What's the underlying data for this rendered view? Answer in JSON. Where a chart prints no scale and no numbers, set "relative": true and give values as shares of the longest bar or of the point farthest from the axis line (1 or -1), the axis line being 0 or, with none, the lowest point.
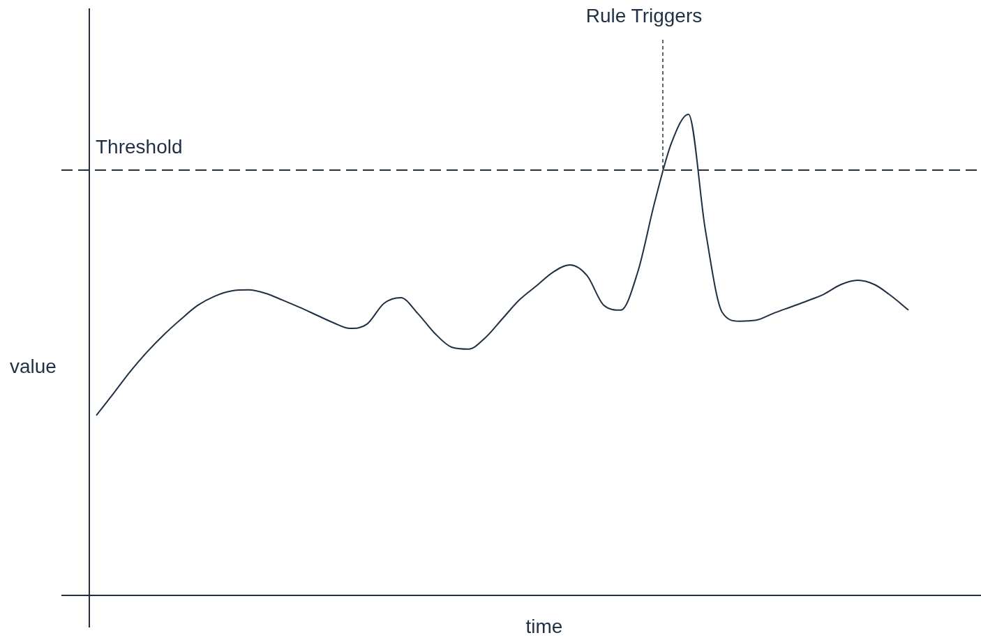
{
  "chart_data": {
    "type": "line",
    "relative": true,
    "xlabel": "time",
    "ylabel": "value",
    "categories": [
      null,
      null,
      null,
      null,
      null,
      null,
      null,
      null,
      null,
      null,
      null,
      null,
      null,
      null,
      null,
      null,
      null,
      null,
      null,
      null,
      null,
      null,
      null,
      null,
      null,
      null,
      null,
      null,
      null,
      null,
      null,
      null,
      null,
      null,
      null,
      null,
      null,
      null,
      null,
      null,
      null,
      null,
      null,
      null,
      null,
      null,
      null,
      null,
      null
    ],
    "series": [
      {
        "color": "#1f3044",
        "values": [
          0.374,
          0.419,
          0.465,
          0.506,
          0.542,
          0.574,
          0.603,
          0.622,
          0.633,
          0.635,
          0.628,
          0.614,
          0.599,
          0.583,
          0.567,
          0.555,
          0.564,
          0.607,
          0.619,
          0.586,
          0.545,
          0.516,
          0.512,
          0.536,
          0.575,
          0.614,
          0.643,
          0.672,
          0.687,
          0.665,
          0.603,
          0.593,
          0.672,
          0.817,
          0.941,
          1,
          0.759,
          0.588,
          0.57,
          0.572,
          0.586,
          0.599,
          0.612,
          0.626,
          0.646,
          0.655,
          0.646,
          0.622,
          0.593
        ]
      }
    ],
    "ref_lines": [
      {
        "axis": "y",
        "value": 0.884,
        "label": "Threshold",
        "color": "#1f3044",
        "line_style": "dashed"
      }
    ],
    "annotations": [
      "Rule Triggers"
    ],
    "legend": false,
    "marker": "none",
    "line_style": "solid"
  }
}
